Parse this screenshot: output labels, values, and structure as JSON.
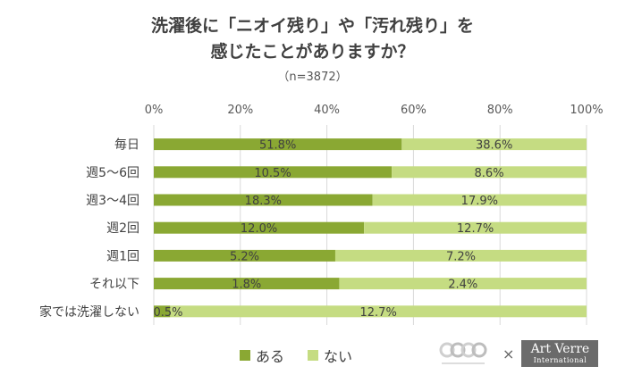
{
  "title_line1": "洗濯後に「ニオイ残り」や「汚れ残り」を",
  "title_line2": "感じたことがありますか？",
  "subtitle": "（n=3872）",
  "chart_data": {
    "type": "bar",
    "orientation": "horizontal",
    "stacked": true,
    "percent_stacked": true,
    "categories": [
      "毎日",
      "週5～6回",
      "週3～4回",
      "週2回",
      "週1回",
      "それ以下",
      "家では洗濯しない"
    ],
    "series": [
      {
        "name": "ある",
        "color": "#8aa833",
        "values": [
          51.8,
          10.5,
          18.3,
          12.0,
          5.2,
          1.8,
          0.5
        ],
        "labels": [
          "51.8%",
          "10.5%",
          "18.3%",
          "12.0%",
          "5.2%",
          "1.8%",
          "0.5%"
        ]
      },
      {
        "name": "ない",
        "color": "#c5dc82",
        "values": [
          38.6,
          8.6,
          17.9,
          12.7,
          7.2,
          2.4,
          12.7
        ],
        "labels": [
          "38.6%",
          "8.6%",
          "17.9%",
          "12.7%",
          "7.2%",
          "2.4%",
          "12.7%"
        ]
      }
    ],
    "x_ticks": [
      "0%",
      "20%",
      "40%",
      "60%",
      "80%",
      "100%"
    ],
    "xlim": [
      0,
      100
    ],
    "grid": true,
    "legend": "bottom"
  },
  "logos": {
    "times": "×",
    "artverre_main": "Art Verre",
    "artverre_sub": "International",
    "wave_logo_icon": "wave-logo-icon"
  }
}
